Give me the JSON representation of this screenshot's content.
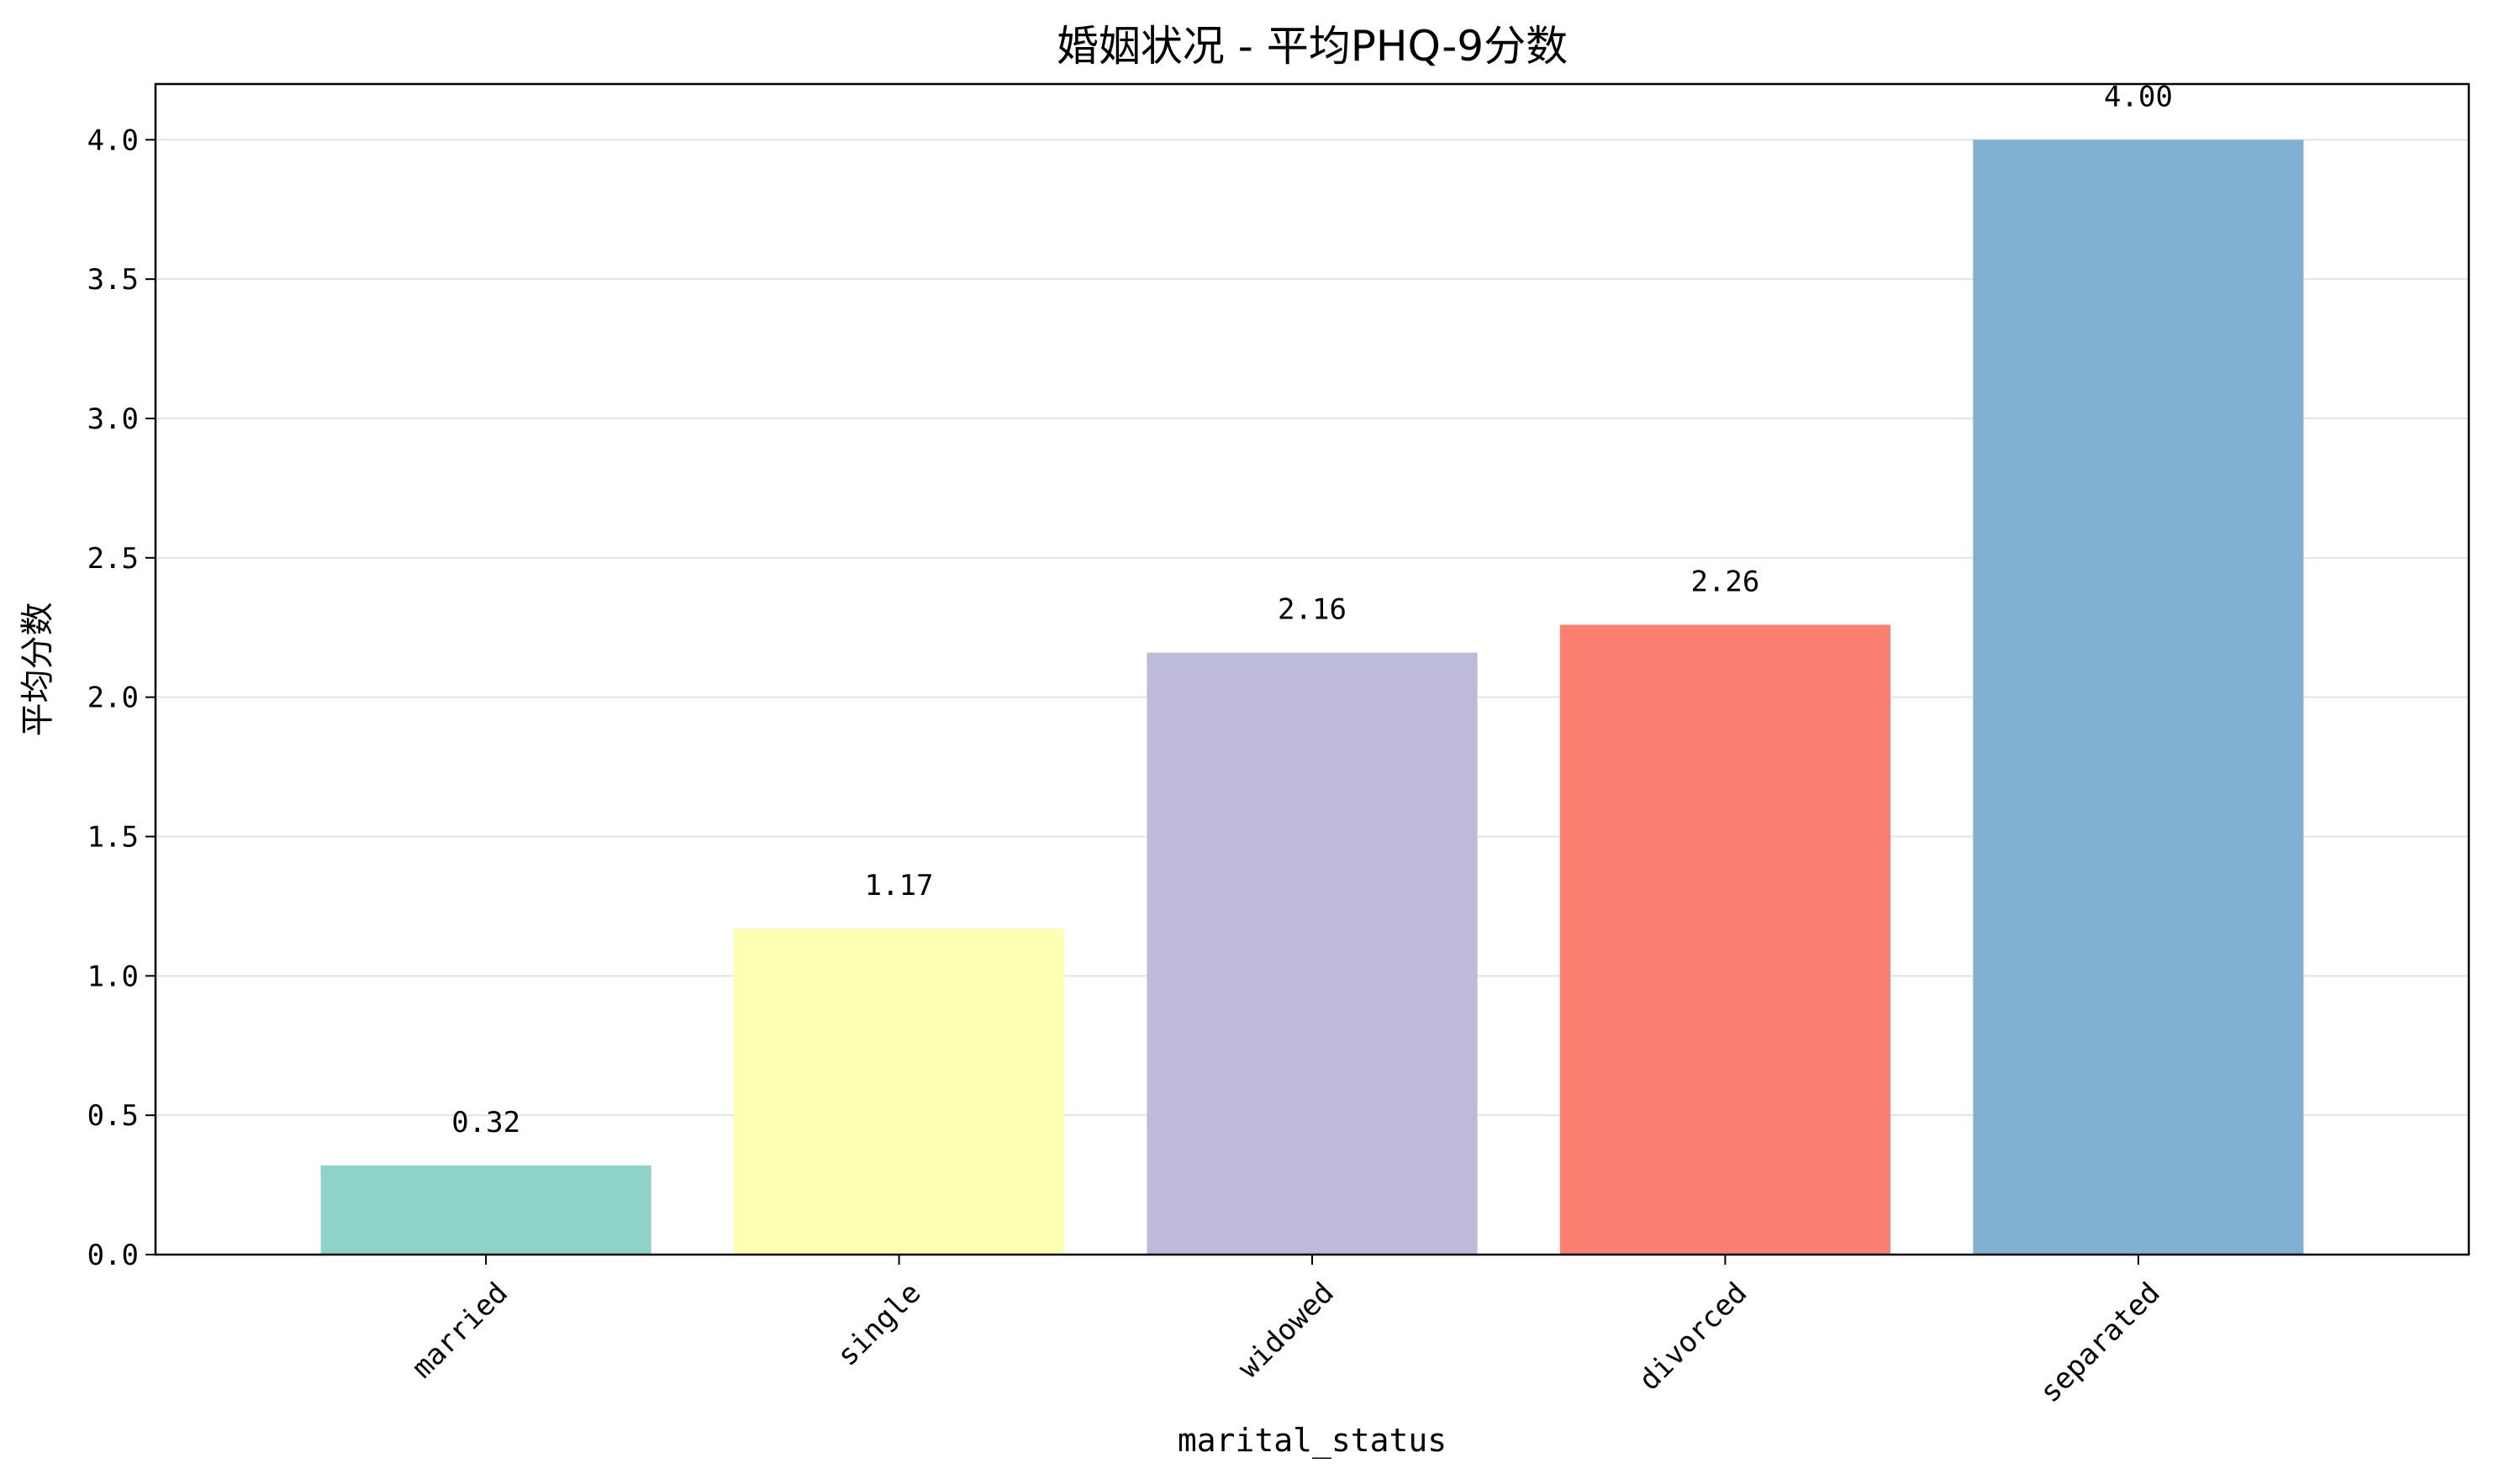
{
  "chart_data": {
    "type": "bar",
    "title": "婚姻状况 - 平均PHQ-9分数",
    "xlabel": "marital_status",
    "ylabel": "平均分数",
    "categories": [
      "married",
      "single",
      "widowed",
      "divorced",
      "separated"
    ],
    "values": [
      0.32,
      1.17,
      2.16,
      2.26,
      4.0
    ],
    "value_labels": [
      "0.32",
      "1.17",
      "2.16",
      "2.26",
      "4.00"
    ],
    "colors": [
      "#8dd3c7",
      "#ffffb3",
      "#bebada",
      "#fb8072",
      "#80b1d3"
    ],
    "ylim": [
      0,
      4.2
    ],
    "yticks": [
      0.0,
      0.5,
      1.0,
      1.5,
      2.0,
      2.5,
      3.0,
      3.5,
      4.0
    ],
    "ytick_labels": [
      "0.0",
      "0.5",
      "1.0",
      "1.5",
      "2.0",
      "2.5",
      "3.0",
      "3.5",
      "4.0"
    ],
    "grid": "y",
    "legend": "none",
    "xtick_rotation": 45
  }
}
